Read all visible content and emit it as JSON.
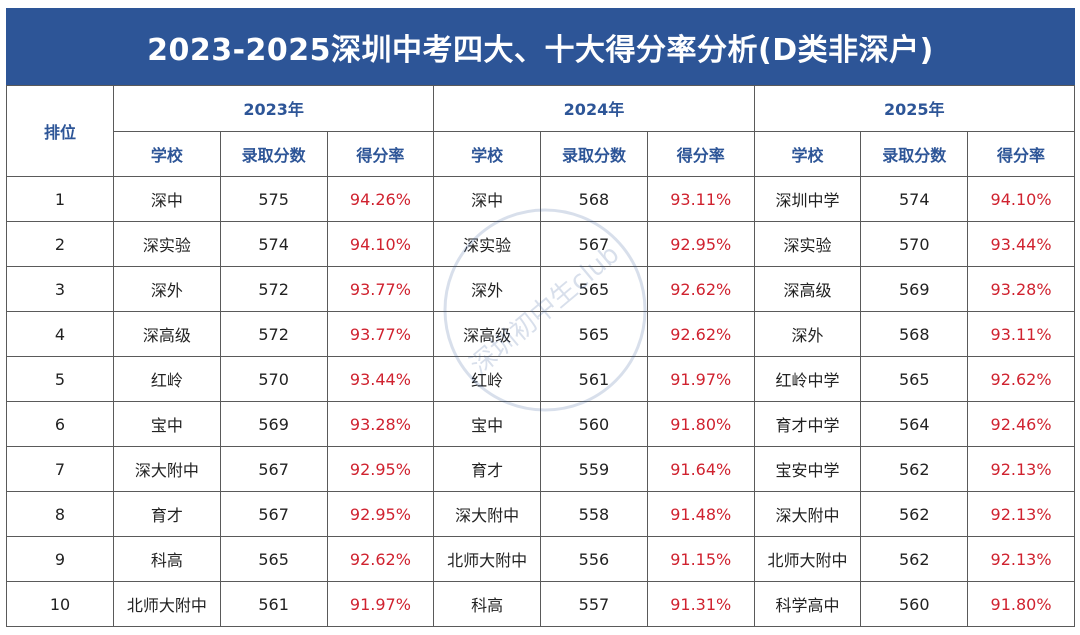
{
  "title": "2023-2025深圳中考四大、十大得分率分析(D类非深户)",
  "rank_header": "排位",
  "years": [
    "2023年",
    "2024年",
    "2025年"
  ],
  "sub_headers": [
    "学校",
    "录取分数",
    "得分率"
  ],
  "colors": {
    "title_bg": "#2d5597",
    "header_text": "#2d5597",
    "rate_text": "#d0222f"
  },
  "watermark": "深圳初中生club",
  "rows": [
    {
      "rank": "1",
      "y2023": [
        "深中",
        "575",
        "94.26%"
      ],
      "y2024": [
        "深中",
        "568",
        "93.11%"
      ],
      "y2025": [
        "深圳中学",
        "574",
        "94.10%"
      ]
    },
    {
      "rank": "2",
      "y2023": [
        "深实验",
        "574",
        "94.10%"
      ],
      "y2024": [
        "深实验",
        "567",
        "92.95%"
      ],
      "y2025": [
        "深实验",
        "570",
        "93.44%"
      ]
    },
    {
      "rank": "3",
      "y2023": [
        "深外",
        "572",
        "93.77%"
      ],
      "y2024": [
        "深外",
        "565",
        "92.62%"
      ],
      "y2025": [
        "深高级",
        "569",
        "93.28%"
      ]
    },
    {
      "rank": "4",
      "y2023": [
        "深高级",
        "572",
        "93.77%"
      ],
      "y2024": [
        "深高级",
        "565",
        "92.62%"
      ],
      "y2025": [
        "深外",
        "568",
        "93.11%"
      ]
    },
    {
      "rank": "5",
      "y2023": [
        "红岭",
        "570",
        "93.44%"
      ],
      "y2024": [
        "红岭",
        "561",
        "91.97%"
      ],
      "y2025": [
        "红岭中学",
        "565",
        "92.62%"
      ]
    },
    {
      "rank": "6",
      "y2023": [
        "宝中",
        "569",
        "93.28%"
      ],
      "y2024": [
        "宝中",
        "560",
        "91.80%"
      ],
      "y2025": [
        "育才中学",
        "564",
        "92.46%"
      ]
    },
    {
      "rank": "7",
      "y2023": [
        "深大附中",
        "567",
        "92.95%"
      ],
      "y2024": [
        "育才",
        "559",
        "91.64%"
      ],
      "y2025": [
        "宝安中学",
        "562",
        "92.13%"
      ]
    },
    {
      "rank": "8",
      "y2023": [
        "育才",
        "567",
        "92.95%"
      ],
      "y2024": [
        "深大附中",
        "558",
        "91.48%"
      ],
      "y2025": [
        "深大附中",
        "562",
        "92.13%"
      ]
    },
    {
      "rank": "9",
      "y2023": [
        "科高",
        "565",
        "92.62%"
      ],
      "y2024": [
        "北师大附中",
        "556",
        "91.15%"
      ],
      "y2025": [
        "北师大附中",
        "562",
        "92.13%"
      ]
    },
    {
      "rank": "10",
      "y2023": [
        "北师大附中",
        "561",
        "91.97%"
      ],
      "y2024": [
        "科高",
        "557",
        "91.31%"
      ],
      "y2025": [
        "科学高中",
        "560",
        "91.80%"
      ]
    }
  ]
}
